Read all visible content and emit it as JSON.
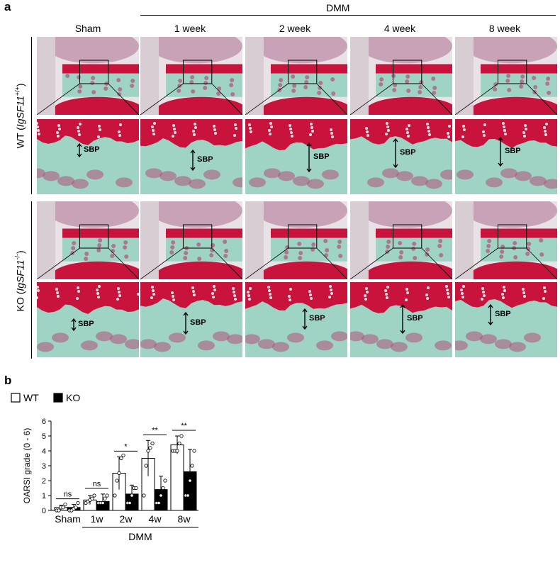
{
  "figure": {
    "panel_a_letter": "a",
    "panel_b_letter": "b",
    "dmm_group_label": "DMM",
    "columns": [
      "Sham",
      "1 week",
      "2 week",
      "4 week",
      "8 week"
    ],
    "rows": [
      {
        "prefix": "WT (",
        "gene": "IgSF11",
        "sup": "+/+",
        "suffix": ")"
      },
      {
        "prefix": "KO (",
        "gene": "IgSF11",
        "sup": "-/-",
        "suffix": ")"
      }
    ],
    "sbp_label": "SBP",
    "colors": {
      "safranin_red": "#c8143c",
      "fast_green": "#9fd4c4",
      "marrow_purple": "#b0507a",
      "bg": "#ffffff"
    }
  },
  "chart_data": {
    "type": "bar",
    "ylabel": "OARSI grade (0 - 6)",
    "ylim": [
      0,
      6
    ],
    "yticks": [
      0,
      1,
      2,
      3,
      4,
      5,
      6
    ],
    "categories": [
      "Sham",
      "1w",
      "2w",
      "4w",
      "8w"
    ],
    "group_label": "DMM",
    "series": [
      {
        "name": "WT",
        "fill": "#ffffff",
        "values": [
          0.2,
          0.7,
          2.5,
          3.5,
          4.4
        ],
        "errors": [
          0.15,
          0.3,
          1.1,
          1.2,
          0.6
        ],
        "points": [
          [
            0,
            0,
            0.2,
            0.2,
            0.4
          ],
          [
            0.5,
            0.6,
            0.7,
            0.8,
            1.0
          ],
          [
            1.0,
            2.0,
            2.5,
            3.5,
            3.7
          ],
          [
            1.0,
            3.0,
            4.0,
            4.2,
            4.5
          ],
          [
            4.0,
            4.0,
            4.0,
            4.5,
            5.0
          ]
        ]
      },
      {
        "name": "KO",
        "fill": "#000000",
        "values": [
          0.2,
          0.6,
          1.1,
          1.4,
          2.6
        ],
        "errors": [
          0.2,
          0.5,
          0.6,
          0.9,
          1.5
        ],
        "points": [
          [
            0,
            0,
            0.1,
            0.2,
            0.5
          ],
          [
            0.5,
            0.5,
            0.5,
            0.8,
            1.0
          ],
          [
            0.5,
            0.5,
            1.0,
            1.5,
            1.5
          ],
          [
            0.5,
            0.5,
            1.0,
            1.5,
            2.0
          ],
          [
            1.0,
            1.0,
            2.0,
            3.0,
            4.0
          ]
        ]
      }
    ],
    "significance": [
      "ns",
      "ns",
      "*",
      "**",
      "**"
    ],
    "legend_placement": "top-left",
    "grid": false
  }
}
